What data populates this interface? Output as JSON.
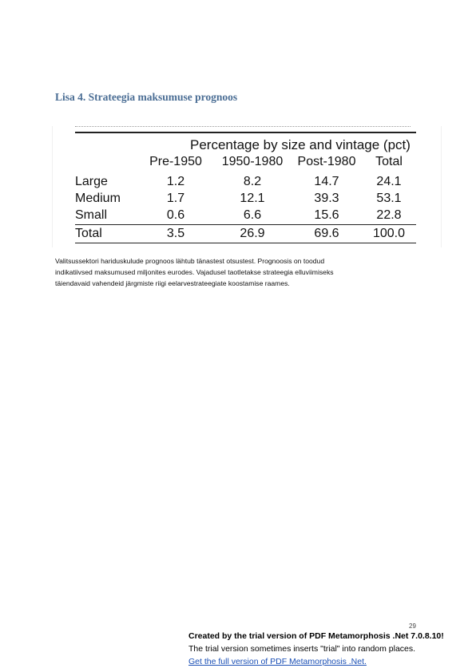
{
  "document": {
    "heading": "Lisa 4. Strateegia maksumuse prognoos",
    "paragraph_lines": [
      "Valitsussektori hariduskulude prognoos lähtub tänastest otsustest. Prognoosis on toodud",
      "indikatiivsed maksumused miljonites eurodes. Vajadusel taotletakse strateegia elluviimiseks",
      "täiendavaid vahendeid järgmiste riigi eelarvestrateegiate koostamise raames."
    ],
    "page_number": "29"
  },
  "table": {
    "caption": "Percentage by size and vintage (pct)",
    "columns": [
      "",
      "Pre-1950",
      "1950-1980",
      "Post-1980",
      "Total"
    ],
    "rows": [
      [
        "Large",
        "1.2",
        "8.2",
        "14.7",
        "24.1"
      ],
      [
        "Medium",
        "1.7",
        "12.1",
        "39.3",
        "53.1"
      ],
      [
        "Small",
        "0.6",
        "6.6",
        "15.6",
        "22.8"
      ]
    ],
    "total_row": [
      "Total",
      "3.5",
      "26.9",
      "69.6",
      "100.0"
    ]
  },
  "trial_notice": {
    "line1": "Created by the trial version of PDF Metamorphosis .Net 7.0.8.10!",
    "line2": "The trial version sometimes inserts \"trial\" into random places.",
    "link": "Get the full version of PDF Metamorphosis .Net."
  }
}
